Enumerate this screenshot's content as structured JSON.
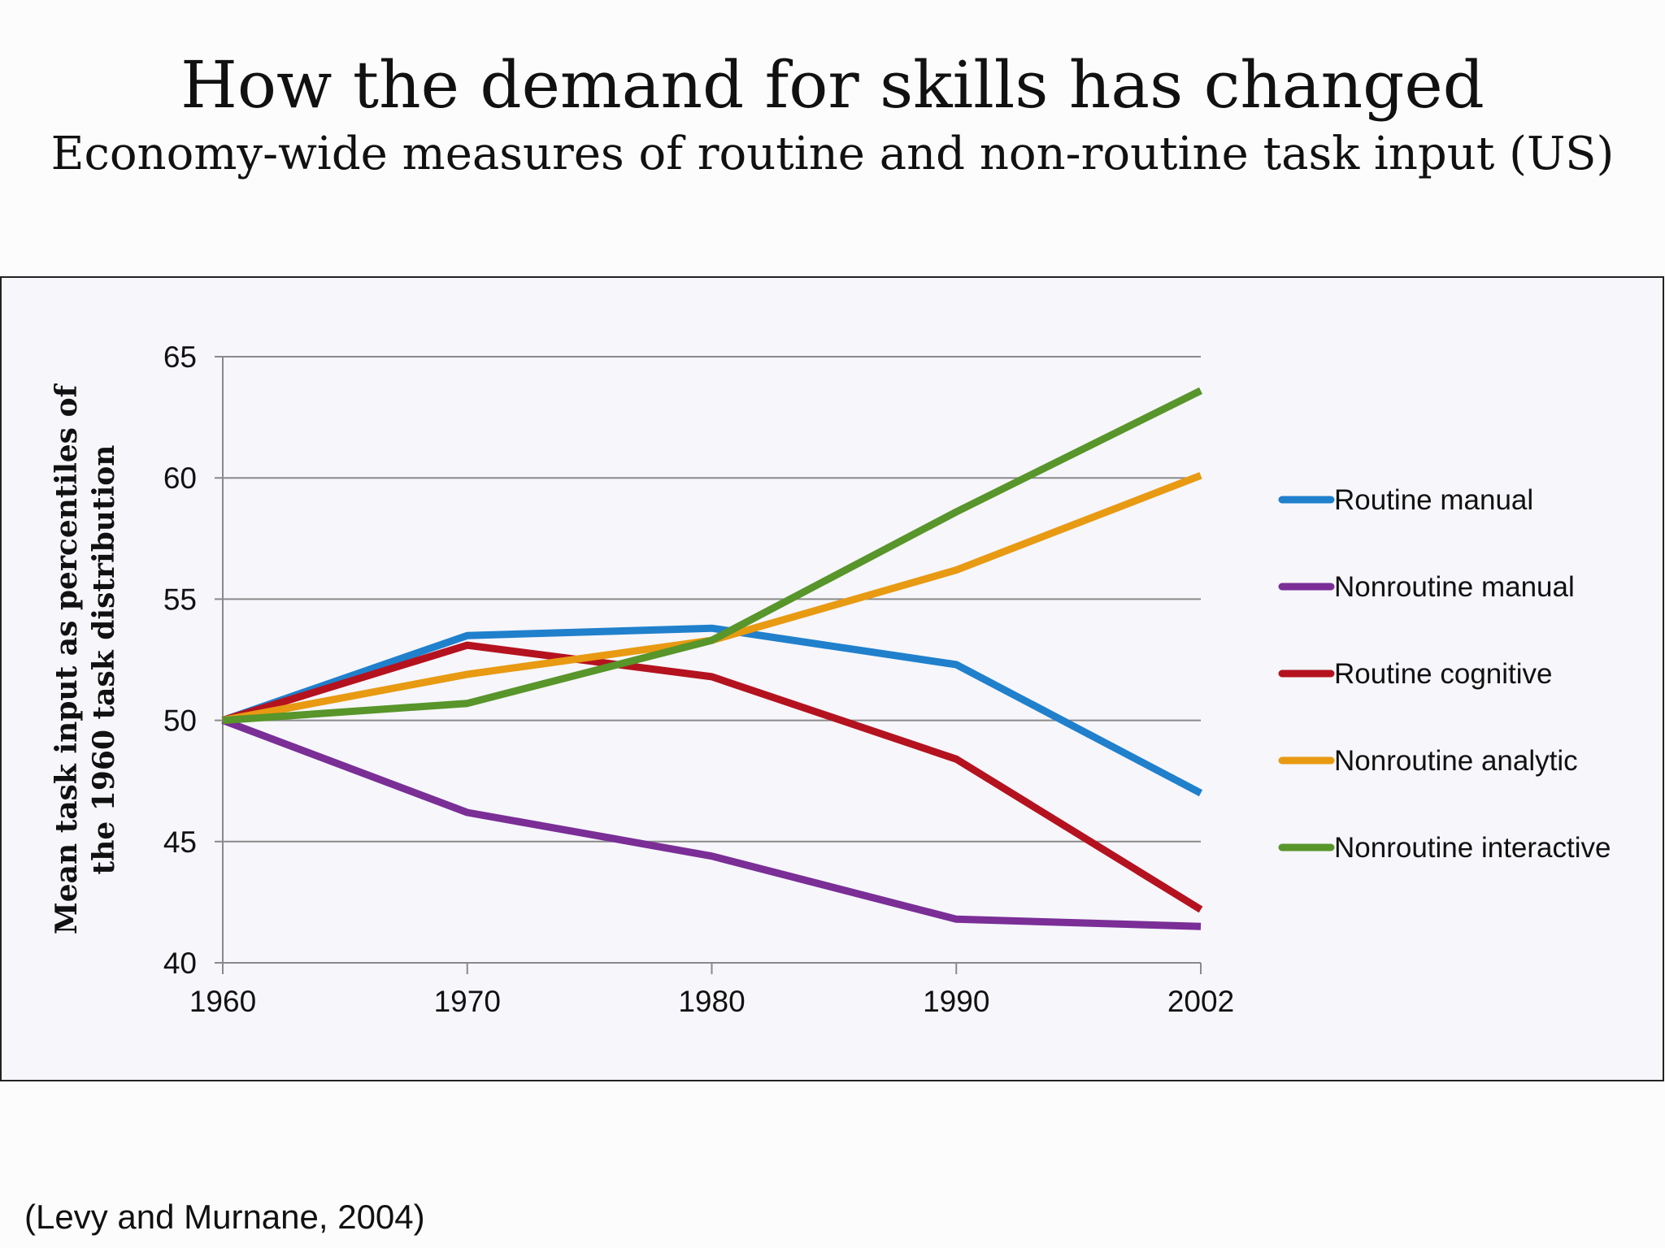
{
  "slide": {
    "title": "How the demand for skills has changed",
    "subtitle": "Economy-wide measures of routine and non-routine task input (US)",
    "citation": "(Levy and Murnane, 2004)"
  },
  "chart_data": {
    "type": "line",
    "title": "",
    "xlabel": "",
    "ylabel": "Mean task input as percentiles of the 1960 task distribution",
    "x": [
      "1960",
      "1970",
      "1980",
      "1990",
      "2002"
    ],
    "ylim": [
      40,
      65
    ],
    "yticks": [
      40,
      45,
      50,
      55,
      60,
      65
    ],
    "grid": true,
    "legend_position": "right",
    "series": [
      {
        "name": "Routine manual",
        "color": "#2080cc",
        "values": [
          50.0,
          53.5,
          53.8,
          52.3,
          47.0
        ]
      },
      {
        "name": "Nonroutine manual",
        "color": "#7a2e96",
        "values": [
          50.0,
          46.2,
          44.4,
          41.8,
          41.5
        ]
      },
      {
        "name": "Routine cognitive",
        "color": "#b5121f",
        "values": [
          50.0,
          53.1,
          51.8,
          48.4,
          42.2
        ]
      },
      {
        "name": "Nonroutine analytic",
        "color": "#e89a12",
        "values": [
          50.0,
          51.9,
          53.3,
          56.2,
          60.1
        ]
      },
      {
        "name": "Nonroutine interactive",
        "color": "#58952a",
        "values": [
          50.0,
          50.7,
          53.3,
          58.6,
          63.6
        ]
      }
    ]
  }
}
